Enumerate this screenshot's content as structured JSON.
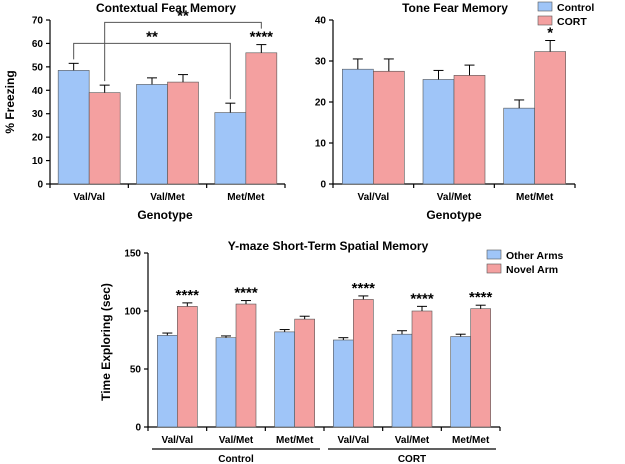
{
  "colors": {
    "control": "#9fc5f8",
    "cort": "#f4a0a0",
    "bar_edge": "#555555",
    "error": "#000000"
  },
  "chart_data": [
    {
      "id": "contextual",
      "type": "bar",
      "title": "Contextual Fear Memory",
      "xlabel": "Genotype",
      "ylabel": "% Freezing",
      "ylim": [
        0,
        70
      ],
      "yticks": [
        0,
        10,
        20,
        30,
        40,
        50,
        60,
        70
      ],
      "categories": [
        "Val/Val",
        "Val/Met",
        "Met/Met"
      ],
      "series": [
        {
          "name": "Control",
          "values": [
            48.5,
            42.5,
            30.5
          ],
          "errors": [
            3.0,
            2.8,
            4.0
          ]
        },
        {
          "name": "CORT",
          "values": [
            39.0,
            43.5,
            56.0
          ],
          "errors": [
            3.2,
            3.2,
            3.5
          ]
        }
      ],
      "annotations": [
        {
          "category": 2,
          "series": 1,
          "text": "****"
        }
      ],
      "brackets": [
        {
          "text": "**",
          "from": [
            0,
            0
          ],
          "to": [
            2,
            0
          ],
          "y": 60
        },
        {
          "text": "**",
          "from": [
            0,
            1
          ],
          "to": [
            2,
            1
          ],
          "y": 69
        }
      ]
    },
    {
      "id": "tone",
      "type": "bar",
      "title": "Tone Fear Memory",
      "xlabel": "Genotype",
      "ylabel": "",
      "ylim": [
        0,
        40
      ],
      "yticks": [
        0,
        10,
        20,
        30,
        40
      ],
      "categories": [
        "Val/Val",
        "Val/Met",
        "Met/Met"
      ],
      "legend": [
        "Control",
        "CORT"
      ],
      "series": [
        {
          "name": "Control",
          "values": [
            28.0,
            25.5,
            18.5
          ],
          "errors": [
            2.5,
            2.2,
            2.0
          ]
        },
        {
          "name": "CORT",
          "values": [
            27.5,
            26.5,
            32.3
          ],
          "errors": [
            3.0,
            2.5,
            2.7
          ]
        }
      ],
      "annotations": [
        {
          "category": 2,
          "series": 1,
          "text": "*"
        }
      ],
      "brackets": []
    },
    {
      "id": "ymaze",
      "type": "bar",
      "title": "Y-maze Short-Term Spatial  Memory",
      "xlabel": "",
      "ylabel": "Time Exploring (sec)",
      "ylim": [
        0,
        150
      ],
      "yticks": [
        0,
        50,
        100,
        150
      ],
      "categories": [
        "Val/Val",
        "Val/Met",
        "Met/Met",
        "Val/Val",
        "Val/Met",
        "Met/Met"
      ],
      "groups": [
        {
          "label": "Control",
          "categories": [
            0,
            1,
            2
          ]
        },
        {
          "label": "CORT",
          "categories": [
            3,
            4,
            5
          ]
        }
      ],
      "legend": [
        "Other Arms",
        "Novel Arm"
      ],
      "series": [
        {
          "name": "Other Arms",
          "values": [
            79,
            77,
            82,
            75,
            80,
            78
          ],
          "errors": [
            2,
            1.5,
            2,
            2,
            3,
            2
          ]
        },
        {
          "name": "Novel Arm",
          "values": [
            104,
            106,
            93,
            110,
            100,
            102
          ],
          "errors": [
            3,
            3,
            2.5,
            3,
            4,
            3
          ]
        }
      ],
      "annotations": [
        {
          "category": 0,
          "series": 1,
          "text": "****"
        },
        {
          "category": 1,
          "series": 1,
          "text": "****"
        },
        {
          "category": 3,
          "series": 1,
          "text": "****"
        },
        {
          "category": 4,
          "series": 1,
          "text": "****"
        },
        {
          "category": 5,
          "series": 1,
          "text": "****"
        }
      ],
      "brackets": []
    }
  ]
}
